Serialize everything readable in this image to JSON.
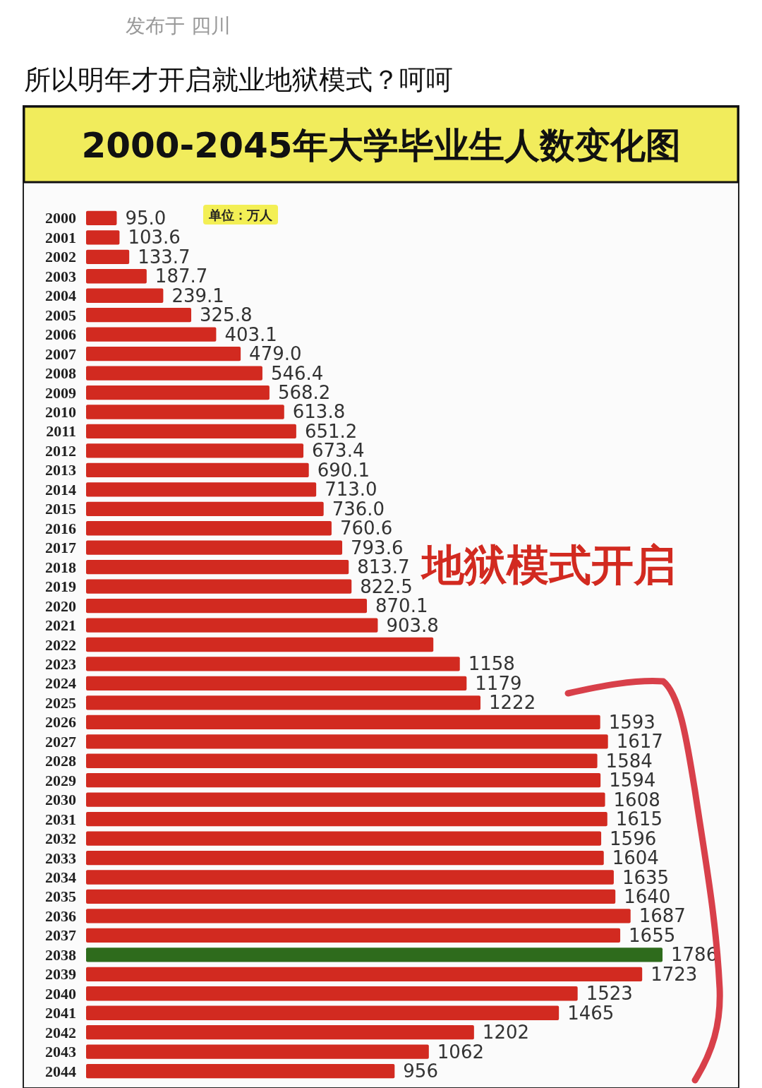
{
  "chart_data": {
    "type": "bar",
    "orientation": "horizontal",
    "title": "2000-2045年大学毕业生人数变化图",
    "annotations": [
      "发布于 四川",
      "所以明年才开启就业地狱模式？呵呵",
      "单位：万人",
      "地狱模式开启"
    ],
    "categories": [
      "2000",
      "2001",
      "2002",
      "2003",
      "2004",
      "2005",
      "2006",
      "2007",
      "2008",
      "2009",
      "2010",
      "2011",
      "2012",
      "2013",
      "2014",
      "2015",
      "2016",
      "2017",
      "2018",
      "2019",
      "2020",
      "2021",
      "2022",
      "2023",
      "2024",
      "2025",
      "2026",
      "2027",
      "2028",
      "2029",
      "2030",
      "2031",
      "2032",
      "2033",
      "2034",
      "2035",
      "2036",
      "2037",
      "2038",
      "2039",
      "2040",
      "2041",
      "2042",
      "2043",
      "2044"
    ],
    "values": [
      95.0,
      103.6,
      133.7,
      187.7,
      239.1,
      325.8,
      403.1,
      479.0,
      546.4,
      568.2,
      613.8,
      651.2,
      673.4,
      690.1,
      713.0,
      736.0,
      760.6,
      793.6,
      813.7,
      822.5,
      870.1,
      903.8,
      1076,
      1158,
      1179,
      1222,
      1593,
      1617,
      1584,
      1594,
      1608,
      1615,
      1596,
      1604,
      1635,
      1640,
      1687,
      1655,
      1786,
      1723,
      1523,
      1465,
      1202,
      1062,
      956
    ],
    "value_labels": [
      "95.0",
      "103.6",
      "133.7",
      "187.7",
      "239.1",
      "325.8",
      "403.1",
      "479.0",
      "546.4",
      "568.2",
      "613.8",
      "651.2",
      "673.4",
      "690.1",
      "713.0",
      "736.0",
      "760.6",
      "793.6",
      "813.7",
      "822.5",
      "870.1",
      "903.8",
      null,
      "1158",
      "1179",
      "1222",
      "1593",
      "1617",
      "1584",
      "1594",
      "1608",
      "1615",
      "1596",
      "1604",
      "1635",
      "1640",
      "1687",
      "1655",
      "1786",
      "1723",
      "1523",
      "1465",
      "1202",
      "1062",
      "956"
    ],
    "colors": [
      "#d22a20",
      "#d22a20",
      "#d22a20",
      "#d22a20",
      "#d22a20",
      "#d22a20",
      "#d22a20",
      "#d22a20",
      "#d22a20",
      "#d22a20",
      "#d22a20",
      "#d22a20",
      "#d22a20",
      "#d22a20",
      "#d22a20",
      "#d22a20",
      "#d22a20",
      "#d22a20",
      "#d22a20",
      "#d22a20",
      "#d22a20",
      "#d22a20",
      "#d22a20",
      "#d22a20",
      "#d22a20",
      "#d22a20",
      "#d22a20",
      "#d22a20",
      "#d22a20",
      "#d22a20",
      "#d22a20",
      "#d22a20",
      "#d22a20",
      "#d22a20",
      "#d22a20",
      "#d22a20",
      "#d22a20",
      "#d22a20",
      "#2e6b1c",
      "#d22a20",
      "#d22a20",
      "#d22a20",
      "#d22a20",
      "#d22a20",
      "#d22a20"
    ]
  }
}
